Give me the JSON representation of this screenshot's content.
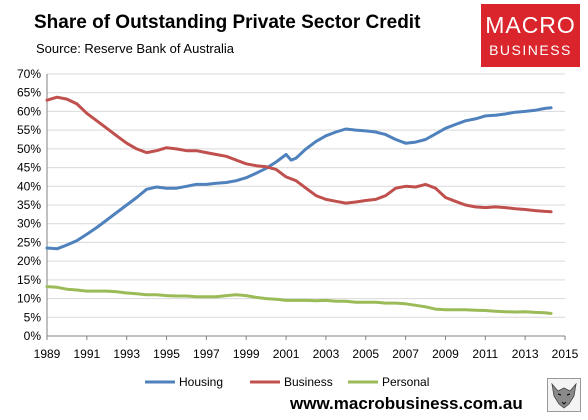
{
  "chart_data": {
    "type": "line",
    "title": "Share of Outstanding Private Sector Credit",
    "subtitle": "Source: Reserve Bank of Australia",
    "xlabel": "",
    "ylabel": "",
    "xlim": [
      1989,
      2015
    ],
    "ylim": [
      0,
      70
    ],
    "x_ticks": [
      "1989",
      "1991",
      "1993",
      "1995",
      "1997",
      "1999",
      "2001",
      "2003",
      "2005",
      "2007",
      "2009",
      "2011",
      "2013",
      "2015"
    ],
    "y_ticks": [
      "0%",
      "5%",
      "10%",
      "15%",
      "20%",
      "25%",
      "30%",
      "35%",
      "40%",
      "45%",
      "50%",
      "55%",
      "60%",
      "65%",
      "70%"
    ],
    "grid": "horizontal",
    "legend": "bottom",
    "series": [
      {
        "name": "Housing",
        "color": "#4f81bd",
        "x": [
          1989.0,
          1989.5,
          1990.0,
          1990.5,
          1991.0,
          1991.5,
          1992.0,
          1992.5,
          1993.0,
          1993.5,
          1994.0,
          1994.5,
          1995.0,
          1995.5,
          1996.0,
          1996.5,
          1997.0,
          1997.5,
          1998.0,
          1998.5,
          1999.0,
          1999.5,
          2000.0,
          2000.5,
          2001.0,
          2001.25,
          2001.5,
          2002.0,
          2002.5,
          2003.0,
          2003.5,
          2004.0,
          2004.5,
          2005.0,
          2005.5,
          2006.0,
          2006.5,
          2007.0,
          2007.5,
          2008.0,
          2008.5,
          2009.0,
          2009.5,
          2010.0,
          2010.5,
          2011.0,
          2011.5,
          2012.0,
          2012.5,
          2013.0,
          2013.5,
          2014.0,
          2014.3
        ],
        "values": [
          23.5,
          23.3,
          24.3,
          25.5,
          27.2,
          29.0,
          31.0,
          33.0,
          35.0,
          37.0,
          39.2,
          39.8,
          39.5,
          39.5,
          40.0,
          40.5,
          40.5,
          40.8,
          41.0,
          41.5,
          42.3,
          43.5,
          44.8,
          46.5,
          48.5,
          47.0,
          47.5,
          50.0,
          52.0,
          53.5,
          54.5,
          55.3,
          55.0,
          54.8,
          54.5,
          53.8,
          52.5,
          51.5,
          51.8,
          52.5,
          54.0,
          55.5,
          56.5,
          57.5,
          58.0,
          58.8,
          59.0,
          59.3,
          59.8,
          60.0,
          60.3,
          60.8,
          61.0
        ]
      },
      {
        "name": "Business",
        "color": "#c0504d",
        "x": [
          1989.0,
          1989.5,
          1990.0,
          1990.5,
          1991.0,
          1991.5,
          1992.0,
          1992.5,
          1993.0,
          1993.5,
          1994.0,
          1994.5,
          1995.0,
          1995.5,
          1996.0,
          1996.5,
          1997.0,
          1997.5,
          1998.0,
          1998.5,
          1999.0,
          1999.5,
          2000.0,
          2000.5,
          2001.0,
          2001.5,
          2002.0,
          2002.5,
          2003.0,
          2003.5,
          2004.0,
          2004.5,
          2005.0,
          2005.5,
          2006.0,
          2006.5,
          2007.0,
          2007.5,
          2008.0,
          2008.5,
          2009.0,
          2009.5,
          2010.0,
          2010.5,
          2011.0,
          2011.5,
          2012.0,
          2012.5,
          2013.0,
          2013.5,
          2014.0,
          2014.3
        ],
        "values": [
          63.0,
          63.8,
          63.3,
          62.0,
          59.5,
          57.5,
          55.5,
          53.5,
          51.5,
          50.0,
          49.0,
          49.5,
          50.3,
          50.0,
          49.5,
          49.5,
          49.0,
          48.5,
          48.0,
          47.0,
          46.0,
          45.5,
          45.2,
          44.5,
          42.5,
          41.5,
          39.5,
          37.5,
          36.5,
          36.0,
          35.5,
          35.8,
          36.2,
          36.5,
          37.5,
          39.5,
          40.0,
          39.8,
          40.5,
          39.5,
          37.0,
          36.0,
          35.0,
          34.5,
          34.3,
          34.5,
          34.3,
          34.0,
          33.8,
          33.5,
          33.3,
          33.2
        ]
      },
      {
        "name": "Personal",
        "color": "#9bbb59",
        "x": [
          1989.0,
          1989.5,
          1990.0,
          1990.5,
          1991.0,
          1991.5,
          1992.0,
          1992.5,
          1993.0,
          1993.5,
          1994.0,
          1994.5,
          1995.0,
          1995.5,
          1996.0,
          1996.5,
          1997.0,
          1997.5,
          1998.0,
          1998.5,
          1999.0,
          1999.5,
          2000.0,
          2000.5,
          2001.0,
          2001.5,
          2002.0,
          2002.5,
          2003.0,
          2003.5,
          2004.0,
          2004.5,
          2005.0,
          2005.5,
          2006.0,
          2006.5,
          2007.0,
          2007.5,
          2008.0,
          2008.5,
          2009.0,
          2009.5,
          2010.0,
          2010.5,
          2011.0,
          2011.5,
          2012.0,
          2012.5,
          2013.0,
          2013.5,
          2014.0,
          2014.3
        ],
        "values": [
          13.2,
          13.0,
          12.5,
          12.3,
          12.0,
          12.0,
          12.0,
          11.8,
          11.5,
          11.3,
          11.0,
          11.0,
          10.8,
          10.7,
          10.7,
          10.5,
          10.5,
          10.5,
          10.8,
          11.0,
          10.8,
          10.3,
          10.0,
          9.8,
          9.5,
          9.5,
          9.5,
          9.4,
          9.5,
          9.3,
          9.3,
          9.0,
          9.0,
          9.0,
          8.8,
          8.8,
          8.6,
          8.2,
          7.8,
          7.2,
          7.0,
          7.0,
          7.0,
          6.9,
          6.8,
          6.6,
          6.5,
          6.4,
          6.5,
          6.3,
          6.2,
          6.0
        ]
      }
    ]
  },
  "logo": {
    "line1": "MACRO",
    "line2": "BUSINESS"
  },
  "footer": "www.macrobusiness.com.au",
  "icons": {
    "logo_mascot": "wolf-icon"
  }
}
